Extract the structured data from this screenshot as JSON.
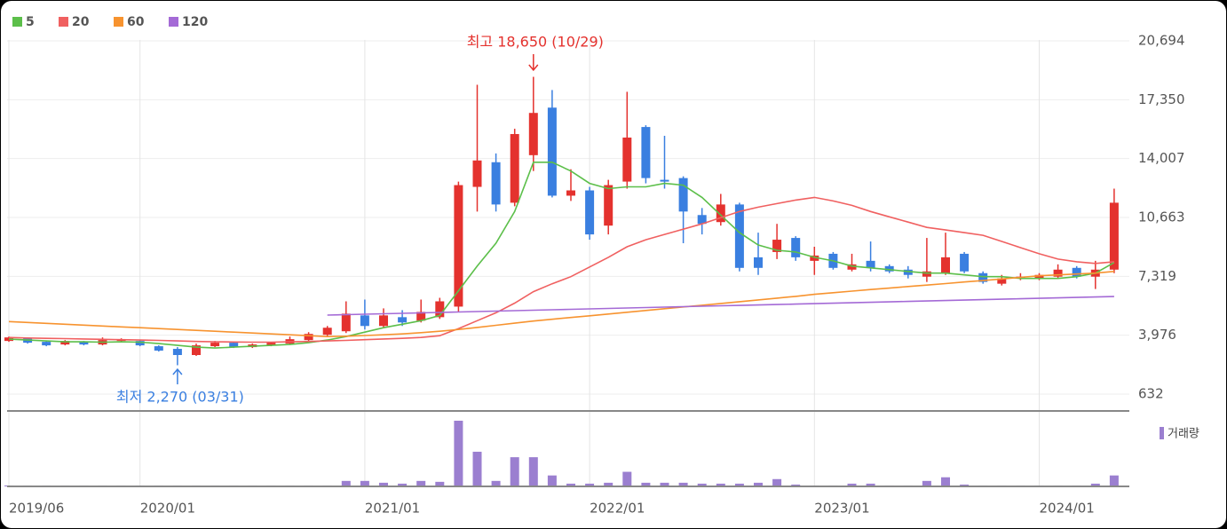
{
  "chart_data": {
    "type": "candlestick",
    "categories": [
      "2019/06",
      null,
      null,
      null,
      null,
      null,
      null,
      "2020/01",
      null,
      null,
      null,
      null,
      null,
      null,
      null,
      null,
      null,
      null,
      null,
      "2021/01",
      null,
      null,
      null,
      null,
      null,
      null,
      null,
      null,
      null,
      null,
      null,
      "2022/01",
      null,
      null,
      null,
      null,
      null,
      null,
      null,
      null,
      null,
      null,
      null,
      "2023/01",
      null,
      null,
      null,
      null,
      null,
      null,
      null,
      null,
      null,
      null,
      null,
      "2024/01",
      null,
      null,
      null,
      null
    ],
    "open": [
      3650,
      3800,
      3600,
      3450,
      3600,
      3450,
      3650,
      3650,
      3350,
      3200,
      2850,
      3350,
      3550,
      3300,
      3400,
      3500,
      3700,
      4000,
      4200,
      5100,
      4500,
      5000,
      4800,
      5000,
      5600,
      12400,
      13800,
      11500,
      14200,
      16900,
      11900,
      12200,
      10200,
      12700,
      15800,
      12800,
      12900,
      10800,
      10400,
      11400,
      8400,
      8700,
      9500,
      8200,
      8600,
      7700,
      8200,
      7900,
      7700,
      7300,
      7500,
      8600,
      7500,
      6900,
      7200,
      7200,
      7300,
      7800,
      7300,
      7700
    ],
    "close": [
      3850,
      3550,
      3400,
      3650,
      3450,
      3700,
      3750,
      3400,
      3100,
      2850,
      3400,
      3550,
      3300,
      3450,
      3550,
      3750,
      4050,
      4400,
      5200,
      4500,
      5100,
      4700,
      5300,
      5900,
      12500,
      13900,
      11400,
      15400,
      16600,
      11900,
      12200,
      9700,
      12500,
      15200,
      12900,
      12700,
      11000,
      10300,
      11400,
      7800,
      7800,
      9400,
      8400,
      8500,
      7800,
      8000,
      7800,
      7600,
      7400,
      7600,
      8400,
      7600,
      7000,
      7200,
      7300,
      7400,
      7700,
      7300,
      7700,
      11500
    ],
    "high": [
      3900,
      3850,
      3650,
      3700,
      3650,
      3850,
      3800,
      3700,
      3400,
      3300,
      3500,
      3650,
      3600,
      3500,
      3600,
      3900,
      4150,
      4500,
      5900,
      6000,
      5500,
      5400,
      6000,
      6100,
      12700,
      18200,
      14300,
      15700,
      18650,
      17900,
      13400,
      12400,
      12800,
      17800,
      15900,
      15300,
      13000,
      11200,
      12000,
      11500,
      9800,
      10300,
      9600,
      9000,
      8700,
      8600,
      9300,
      8000,
      7900,
      9500,
      9800,
      8700,
      7600,
      7400,
      7500,
      7500,
      8000,
      7900,
      8200,
      12300
    ],
    "low": [
      3600,
      3500,
      3350,
      3400,
      3400,
      3400,
      3600,
      3350,
      3050,
      2270,
      2800,
      3300,
      3250,
      3250,
      3350,
      3450,
      3650,
      3900,
      4100,
      4300,
      4400,
      4500,
      4700,
      4900,
      5300,
      11000,
      11000,
      11300,
      13300,
      11800,
      11600,
      9400,
      9700,
      12300,
      12600,
      12300,
      9200,
      9700,
      10200,
      7600,
      7400,
      8300,
      8200,
      7400,
      7700,
      7600,
      7600,
      7500,
      7200,
      7000,
      7400,
      7500,
      6900,
      6800,
      7100,
      7100,
      7200,
      7200,
      6600,
      7500
    ],
    "series": [
      {
        "name": "5",
        "color": "#5cbf4a",
        "values": [
          3750,
          3700,
          3650,
          3600,
          3600,
          3580,
          3600,
          3580,
          3500,
          3400,
          3300,
          3250,
          3300,
          3350,
          3400,
          3450,
          3550,
          3700,
          3900,
          4150,
          4400,
          4600,
          4800,
          5100,
          6500,
          7900,
          9200,
          11000,
          13800,
          13800,
          13300,
          12600,
          12300,
          12400,
          12400,
          12600,
          12500,
          11800,
          10800,
          9800,
          9100,
          8800,
          8700,
          8400,
          8200,
          7900,
          7800,
          7700,
          7600,
          7500,
          7500,
          7400,
          7300,
          7300,
          7200,
          7200,
          7200,
          7300,
          7500,
          8100
        ]
      },
      {
        "name": "20",
        "color": "#f06060",
        "values": [
          3850,
          3820,
          3800,
          3780,
          3760,
          3740,
          3720,
          3700,
          3680,
          3650,
          3620,
          3600,
          3590,
          3580,
          3580,
          3600,
          3620,
          3650,
          3680,
          3720,
          3760,
          3800,
          3850,
          3950,
          4350,
          4800,
          5250,
          5800,
          6450,
          6900,
          7300,
          7850,
          8400,
          9000,
          9400,
          9700,
          10000,
          10300,
          10650,
          11000,
          11250,
          11450,
          11650,
          11800,
          11600,
          11350,
          11000,
          10700,
          10400,
          10100,
          9950,
          9800,
          9650,
          9300,
          8950,
          8600,
          8300,
          8150,
          8050,
          8150
        ]
      },
      {
        "name": "60",
        "color": "#f7932f",
        "values": [
          4750,
          4700,
          4650,
          4600,
          4550,
          4500,
          4450,
          4400,
          4350,
          4300,
          4250,
          4200,
          4150,
          4100,
          4050,
          4000,
          3950,
          3900,
          3920,
          3960,
          4000,
          4050,
          4120,
          4200,
          4300,
          4420,
          4540,
          4660,
          4780,
          4880,
          4980,
          5080,
          5180,
          5280,
          5380,
          5480,
          5580,
          5680,
          5780,
          5880,
          5980,
          6080,
          6180,
          6300,
          6390,
          6480,
          6570,
          6650,
          6740,
          6820,
          6910,
          7000,
          7080,
          7170,
          7260,
          7350,
          7400,
          7450,
          7500,
          7600
        ]
      },
      {
        "name": "120",
        "color": "#a46ad6",
        "values": [
          null,
          null,
          null,
          null,
          null,
          null,
          null,
          null,
          null,
          null,
          null,
          null,
          null,
          null,
          null,
          null,
          null,
          5120,
          5145,
          5170,
          5195,
          5220,
          5245,
          5270,
          5295,
          5320,
          5345,
          5370,
          5395,
          5420,
          5445,
          5470,
          5495,
          5520,
          5545,
          5570,
          5595,
          5620,
          5645,
          5670,
          5695,
          5720,
          5745,
          5770,
          5795,
          5820,
          5845,
          5870,
          5895,
          5920,
          5945,
          5970,
          5995,
          6020,
          6045,
          6070,
          6095,
          6120,
          6145,
          6170
        ]
      }
    ],
    "volume": {
      "name": "거래량",
      "color": "#9b7fd0",
      "values": [
        1,
        1,
        1,
        1,
        1,
        1,
        1,
        1,
        1,
        1,
        1,
        1,
        1,
        1,
        1,
        1,
        1,
        1,
        6,
        6,
        4,
        3,
        6,
        5,
        72,
        38,
        6,
        32,
        32,
        12,
        3,
        3,
        4,
        16,
        4,
        4,
        4,
        3,
        3,
        3,
        4,
        8,
        2,
        1,
        1,
        3,
        3,
        1,
        1,
        6,
        10,
        2,
        1,
        1,
        1,
        1,
        1,
        1,
        3,
        12
      ]
    },
    "ylim": [
      632,
      20694
    ],
    "yticks": [
      632,
      {
        "value": 3976,
        "label": "3,976"
      },
      {
        "value": 7319,
        "label": "7,319"
      },
      {
        "value": 10663,
        "label": "10,663"
      },
      {
        "value": 14007,
        "label": "14,007"
      },
      {
        "value": 17350,
        "label": "17,350"
      },
      {
        "value": 20694,
        "label": "20,694"
      }
    ],
    "up_color": "#e4322e",
    "down_color": "#3a7fe0",
    "annotations": {
      "high": "최고 18,650 (10/29)",
      "low": "최저 2,270 (03/31)"
    },
    "grid": true
  }
}
